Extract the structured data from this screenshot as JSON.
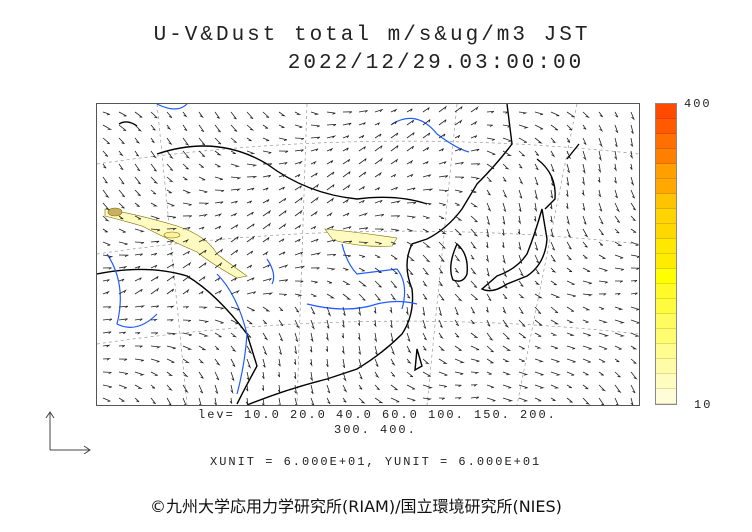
{
  "title": "U-V&Dust total m/s&ug/m3 JST",
  "datetime": "2022/12/29.03:00:00",
  "colorbar": {
    "max_label": "400",
    "min_label": "10",
    "colors": [
      "#ff4a00",
      "#ff5a00",
      "#ff7000",
      "#ff8000",
      "#ffa000",
      "#ffa800",
      "#ffc400",
      "#ffd400",
      "#ffd800",
      "#ffe800",
      "#ffec00",
      "#ffff00",
      "#fffa28",
      "#fffc40",
      "#fffc60",
      "#fffc70",
      "#fffc90",
      "#fffca8",
      "#fffcc0",
      "#fffcd8"
    ]
  },
  "levels_line1": "lev= 10.0 20.0 40.0 60.0 100. 150. 200.",
  "levels_line2": "300. 400.",
  "units": "XUNIT = 6.000E+01, YUNIT = 6.000E+01",
  "credit": "©九州大学応用力学研究所(RIAM)/国立環境研究所(NIES)",
  "colors": {
    "coast": "#000000",
    "river": "#1e5cff",
    "dust_light": "#fffbc0",
    "grid": "#999999"
  }
}
